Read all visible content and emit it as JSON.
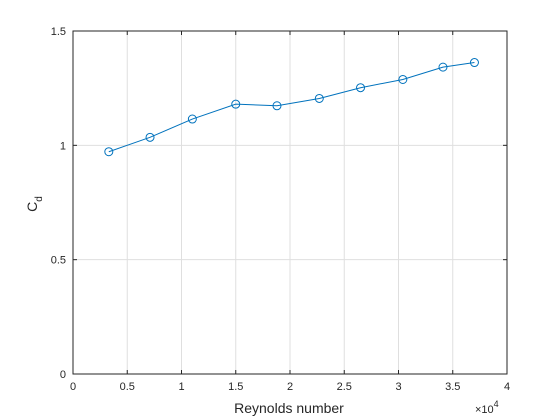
{
  "figure": {
    "background": "#ffffff",
    "axes_color": "#262626",
    "grid_color": "#dfdfdf",
    "series_color": "#0072bd"
  },
  "chart_data": {
    "type": "line",
    "title": "",
    "xlabel": "Reynolds number",
    "ylabel_main": "C",
    "ylabel_sub": "d",
    "x_exponent_base": "×10",
    "x_exponent_power": "4",
    "xlim": [
      0,
      4
    ],
    "ylim": [
      0,
      1.5
    ],
    "x_ticks": [
      0,
      0.5,
      1,
      1.5,
      2,
      2.5,
      3,
      3.5,
      4
    ],
    "x_tick_labels": [
      "0",
      "0.5",
      "1",
      "1.5",
      "2",
      "2.5",
      "3",
      "3.5",
      "4"
    ],
    "y_ticks": [
      0,
      0.5,
      1,
      1.5
    ],
    "y_tick_labels": [
      "0",
      "0.5",
      "1",
      "1.5"
    ],
    "grid": true,
    "marker": "open-circle",
    "series": [
      {
        "x": [
          0.33,
          0.71,
          1.1,
          1.5,
          1.88,
          2.27,
          2.65,
          3.04,
          3.41,
          3.7
        ],
        "y": [
          0.972,
          1.035,
          1.115,
          1.18,
          1.173,
          1.205,
          1.252,
          1.288,
          1.342,
          1.362
        ]
      }
    ]
  }
}
